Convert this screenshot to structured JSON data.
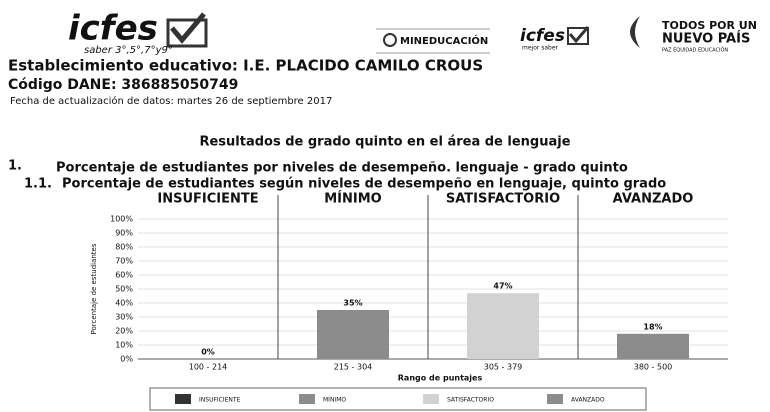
{
  "header": {
    "logo_main": "icfes",
    "logo_tagline": "saber 3°,5°,7°y9°",
    "ministry": "MINEDUCACIÓN",
    "logo_small": "icfes",
    "logo_small_tagline": "mejor saber",
    "gov_line1": "TODOS POR UN",
    "gov_line2": "NUEVO PAÍS",
    "gov_line3": "PAZ  EQUIDAD  EDUCACIÓN"
  },
  "info": {
    "school": "Establecimiento educativo: I.E. PLACIDO CAMILO CROUS",
    "dane": "Código DANE: 386885050749",
    "date": "Fecha de actualización de datos: martes 26 de septiembre 2017"
  },
  "section_title": "Resultados de grado quinto en el área de lenguaje",
  "item1": {
    "number": "1.",
    "text": "Porcentaje de estudiantes por niveles de desempeño. lenguaje - grado quinto"
  },
  "item11": {
    "number": "1.1.",
    "text": "Porcentaje de estudiantes según niveles de desempeño en lenguaje, quinto grado"
  },
  "chart_data": {
    "type": "bar",
    "levels": [
      "INSUFICIENTE",
      "MÍNIMO",
      "SATISFACTORIO",
      "AVANZADO"
    ],
    "categories": [
      "100 - 214",
      "215 - 304",
      "305 - 379",
      "380 - 500"
    ],
    "values": [
      0,
      35,
      47,
      18
    ],
    "value_labels": [
      "0%",
      "35%",
      "47%",
      "18%"
    ],
    "colors": [
      "#333333",
      "#8c8c8c",
      "#d2d2d2",
      "#8c8c8c"
    ],
    "xlabel": "Rango de puntajes",
    "ylabel": "Porcentaje de estudiantes",
    "ylim": [
      0,
      100
    ],
    "yticks": [
      {
        "value": 0,
        "label": "0%"
      },
      {
        "value": 10,
        "label": "10%"
      },
      {
        "value": 20,
        "label": "20%"
      },
      {
        "value": 30,
        "label": "30%"
      },
      {
        "value": 40,
        "label": "40%"
      },
      {
        "value": 50,
        "label": "50%"
      },
      {
        "value": 60,
        "label": "60%"
      },
      {
        "value": 70,
        "label": "70%"
      },
      {
        "value": 80,
        "label": "80%"
      },
      {
        "value": 90,
        "label": "90%"
      },
      {
        "value": 100,
        "label": "100%"
      }
    ],
    "grid": true,
    "legend": "bottom"
  }
}
